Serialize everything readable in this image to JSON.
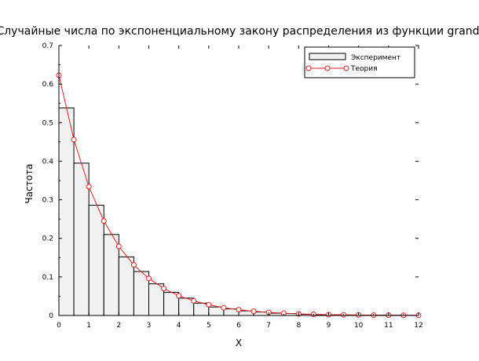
{
  "chart_data": {
    "type": "bar",
    "title": "Случайные числа по экспоненциальному закону распределения из функции grand",
    "xlabel": "X",
    "ylabel": "Частота",
    "xlim": [
      0,
      12
    ],
    "ylim": [
      0,
      0.7
    ],
    "x_ticks": [
      "0",
      "1",
      "2",
      "3",
      "4",
      "5",
      "6",
      "7",
      "8",
      "9",
      "10",
      "11",
      "12"
    ],
    "y_ticks": [
      "0",
      "0.1",
      "0.2",
      "0.3",
      "0.4",
      "0.5",
      "0.6",
      "0.7"
    ],
    "bin_width": 0.5,
    "legend_position": "top-right",
    "grid": false,
    "series": [
      {
        "name": "Эксперимент",
        "kind": "histogram",
        "color": "#000000",
        "fill": "#f2f2f2",
        "x": [
          0,
          0.5,
          1,
          1.5,
          2,
          2.5,
          3,
          3.5,
          4,
          4.5,
          5,
          5.5,
          6,
          6.5,
          7,
          7.5,
          8,
          8.5,
          9,
          9.5,
          10,
          10.5,
          11,
          11.5
        ],
        "values": [
          0.538,
          0.395,
          0.286,
          0.21,
          0.152,
          0.114,
          0.082,
          0.06,
          0.045,
          0.032,
          0.022,
          0.017,
          0.012,
          0.009,
          0.006,
          0.005,
          0.003,
          0.002,
          0.002,
          0.001,
          0.001,
          0.001,
          0.0005,
          0.0003
        ]
      },
      {
        "name": "Теория",
        "kind": "line",
        "color": "#e02020",
        "x": [
          0,
          0.5,
          1,
          1.5,
          2,
          2.5,
          3,
          3.5,
          4,
          4.5,
          5,
          5.5,
          6,
          6.5,
          7,
          7.5,
          8,
          8.5,
          9,
          9.5,
          10,
          10.5,
          11,
          11.5,
          12
        ],
        "values": [
          0.623,
          0.456,
          0.334,
          0.245,
          0.179,
          0.131,
          0.096,
          0.07,
          0.051,
          0.038,
          0.028,
          0.02,
          0.015,
          0.011,
          0.008,
          0.006,
          0.004,
          0.003,
          0.002,
          0.0017,
          0.0012,
          0.0009,
          0.0007,
          0.0005,
          0.0004
        ]
      }
    ]
  }
}
